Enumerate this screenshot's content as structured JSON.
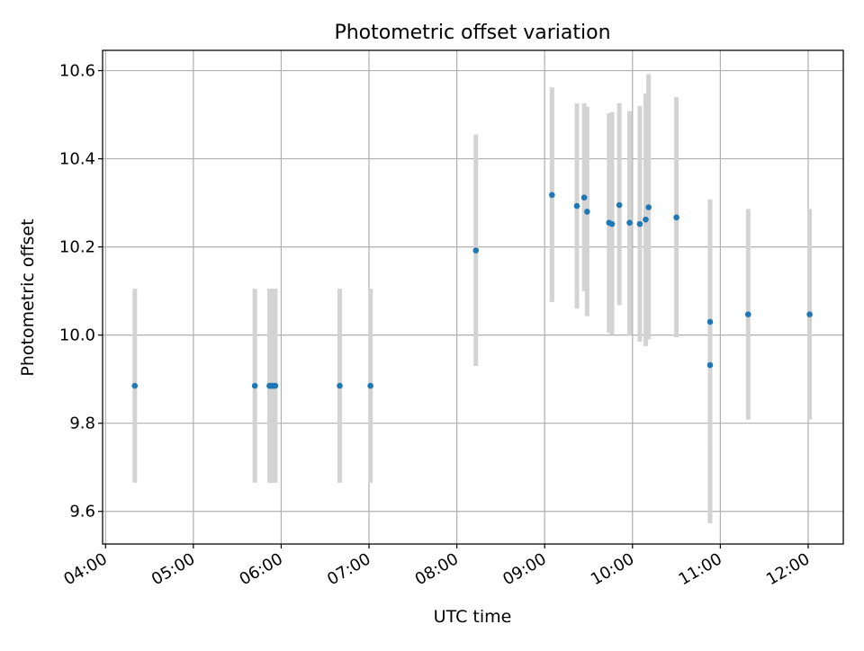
{
  "chart_data": {
    "type": "scatter",
    "title": "Photometric offset variation",
    "xlabel": "UTC time",
    "ylabel": "Photometric offset",
    "x_ticks": [
      "04:00",
      "05:00",
      "06:00",
      "07:00",
      "08:00",
      "09:00",
      "10:00",
      "11:00",
      "12:00"
    ],
    "y_ticks": [
      "9.6",
      "9.8",
      "10.0",
      "10.2",
      "10.4",
      "10.6"
    ],
    "xlim": [
      "03:58",
      "12:24"
    ],
    "ylim": [
      9.526,
      10.646
    ],
    "grid": true,
    "point_color": "#1f77b4",
    "errorbar_color": "#d3d3d3",
    "points": [
      {
        "x": "04:20",
        "y": 9.885,
        "lo": 9.665,
        "hi": 10.105
      },
      {
        "x": "05:42",
        "y": 9.885,
        "lo": 9.665,
        "hi": 10.105
      },
      {
        "x": "05:52",
        "y": 9.885,
        "lo": 9.665,
        "hi": 10.105
      },
      {
        "x": "05:53",
        "y": 9.885,
        "lo": 9.665,
        "hi": 10.105
      },
      {
        "x": "05:54",
        "y": 9.885,
        "lo": 9.665,
        "hi": 10.105
      },
      {
        "x": "05:55",
        "y": 9.885,
        "lo": 9.665,
        "hi": 10.105
      },
      {
        "x": "05:56",
        "y": 9.885,
        "lo": 9.665,
        "hi": 10.105
      },
      {
        "x": "06:40",
        "y": 9.885,
        "lo": 9.665,
        "hi": 10.105
      },
      {
        "x": "07:01",
        "y": 9.885,
        "lo": 9.665,
        "hi": 10.105
      },
      {
        "x": "08:13",
        "y": 10.192,
        "lo": 9.93,
        "hi": 10.455
      },
      {
        "x": "09:05",
        "y": 10.318,
        "lo": 10.075,
        "hi": 10.562
      },
      {
        "x": "09:22",
        "y": 10.293,
        "lo": 10.06,
        "hi": 10.526
      },
      {
        "x": "09:27",
        "y": 10.312,
        "lo": 10.1,
        "hi": 10.526
      },
      {
        "x": "09:29",
        "y": 10.28,
        "lo": 10.043,
        "hi": 10.518
      },
      {
        "x": "09:44",
        "y": 10.255,
        "lo": 10.005,
        "hi": 10.503
      },
      {
        "x": "09:46",
        "y": 10.252,
        "lo": 10.001,
        "hi": 10.506
      },
      {
        "x": "09:51",
        "y": 10.295,
        "lo": 10.068,
        "hi": 10.526
      },
      {
        "x": "09:58",
        "y": 10.255,
        "lo": 10.0,
        "hi": 10.508
      },
      {
        "x": "10:05",
        "y": 10.252,
        "lo": 9.985,
        "hi": 10.52
      },
      {
        "x": "10:09",
        "y": 10.262,
        "lo": 9.975,
        "hi": 10.548
      },
      {
        "x": "10:11",
        "y": 10.29,
        "lo": 9.99,
        "hi": 10.592
      },
      {
        "x": "10:30",
        "y": 10.267,
        "lo": 9.995,
        "hi": 10.54
      },
      {
        "x": "10:53",
        "y": 10.03,
        "lo": 9.752,
        "hi": 10.308
      },
      {
        "x": "10:53",
        "y": 9.932,
        "lo": 9.573,
        "hi": 10.292
      },
      {
        "x": "11:19",
        "y": 10.047,
        "lo": 9.808,
        "hi": 10.286
      },
      {
        "x": "12:01",
        "y": 10.047,
        "lo": 9.808,
        "hi": 10.286
      }
    ]
  }
}
